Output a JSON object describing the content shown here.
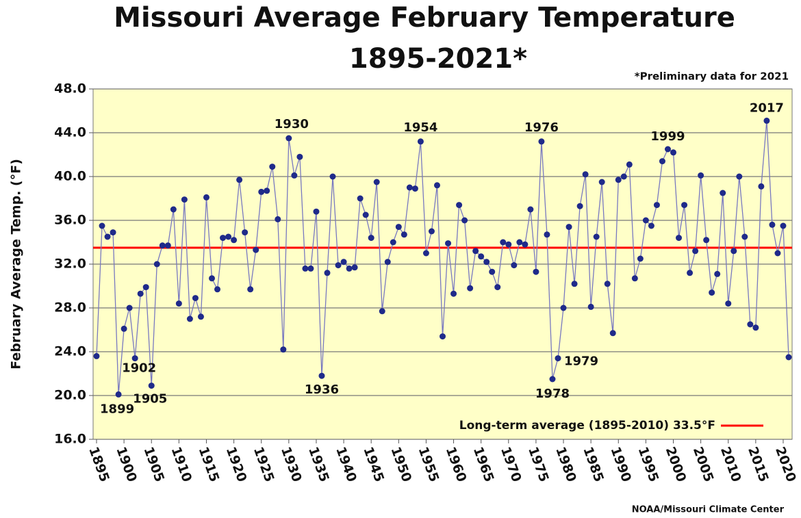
{
  "chart_data": {
    "type": "line",
    "title": [
      "Missouri Average February Temperature",
      "1895-2021*"
    ],
    "note": "*Preliminary data for 2021",
    "source": "NOAA/Missouri Climate Center",
    "y_label": "February Average Temp. (°F)",
    "x": [
      1895,
      1896,
      1897,
      1898,
      1899,
      1900,
      1901,
      1902,
      1903,
      1904,
      1905,
      1906,
      1907,
      1908,
      1909,
      1910,
      1911,
      1912,
      1913,
      1914,
      1915,
      1916,
      1917,
      1918,
      1919,
      1920,
      1921,
      1922,
      1923,
      1924,
      1925,
      1926,
      1927,
      1928,
      1929,
      1930,
      1931,
      1932,
      1933,
      1934,
      1935,
      1936,
      1937,
      1938,
      1939,
      1940,
      1941,
      1942,
      1943,
      1944,
      1945,
      1946,
      1947,
      1948,
      1949,
      1950,
      1951,
      1952,
      1953,
      1954,
      1955,
      1956,
      1957,
      1958,
      1959,
      1960,
      1961,
      1962,
      1963,
      1964,
      1965,
      1966,
      1967,
      1968,
      1969,
      1970,
      1971,
      1972,
      1973,
      1974,
      1975,
      1976,
      1977,
      1978,
      1979,
      1980,
      1981,
      1982,
      1983,
      1984,
      1985,
      1986,
      1987,
      1988,
      1989,
      1990,
      1991,
      1992,
      1993,
      1994,
      1995,
      1996,
      1997,
      1998,
      1999,
      2000,
      2001,
      2002,
      2003,
      2004,
      2005,
      2006,
      2007,
      2008,
      2009,
      2010,
      2011,
      2012,
      2013,
      2014,
      2015,
      2016,
      2017,
      2018,
      2019,
      2020,
      2021
    ],
    "series": [
      {
        "name": "February average temperature",
        "color": "#1f2a8a",
        "line_color": "#7878c0",
        "values": [
          23.6,
          35.5,
          34.5,
          34.9,
          20.1,
          26.1,
          28.0,
          23.4,
          29.3,
          29.9,
          20.9,
          32.0,
          33.7,
          33.7,
          37.0,
          28.4,
          37.9,
          27.0,
          28.9,
          27.2,
          38.1,
          30.7,
          29.7,
          34.4,
          34.5,
          34.2,
          39.7,
          34.9,
          29.7,
          33.3,
          38.6,
          38.7,
          40.9,
          36.1,
          24.2,
          43.5,
          40.1,
          41.8,
          31.6,
          31.6,
          36.8,
          21.8,
          31.2,
          40.0,
          31.9,
          32.2,
          31.6,
          31.7,
          38.0,
          36.5,
          34.4,
          39.5,
          27.7,
          32.2,
          34.0,
          35.4,
          34.7,
          39.0,
          38.9,
          43.2,
          33.0,
          35.0,
          39.2,
          25.4,
          33.9,
          29.3,
          37.4,
          36.0,
          29.8,
          33.2,
          32.7,
          32.2,
          31.3,
          29.9,
          34.0,
          33.8,
          31.9,
          34.0,
          33.8,
          37.0,
          31.3,
          43.2,
          34.7,
          21.5,
          23.4,
          28.0,
          35.4,
          30.2,
          37.3,
          40.2,
          28.1,
          34.5,
          39.5,
          30.2,
          25.7,
          39.7,
          40.0,
          41.1,
          30.7,
          32.5,
          36.0,
          35.5,
          37.4,
          41.4,
          42.5,
          42.2,
          34.4,
          37.4,
          31.2,
          33.2,
          40.1,
          34.2,
          29.4,
          31.1,
          38.5,
          28.4,
          33.2,
          40.0,
          34.5,
          26.5,
          26.2,
          39.1,
          45.1,
          35.6,
          33.0,
          35.5,
          23.5
        ]
      }
    ],
    "average": {
      "label": "Long-term average (1895-2010) 33.5°F",
      "value": 33.5,
      "color": "#ff0000"
    },
    "annotations": [
      {
        "label": "1899",
        "x": 1899
      },
      {
        "label": "1902",
        "x": 1902
      },
      {
        "label": "1905",
        "x": 1905
      },
      {
        "label": "1930",
        "x": 1930
      },
      {
        "label": "1936",
        "x": 1936
      },
      {
        "label": "1954",
        "x": 1954
      },
      {
        "label": "1976",
        "x": 1976
      },
      {
        "label": "1978",
        "x": 1978
      },
      {
        "label": "1979",
        "x": 1979
      },
      {
        "label": "1999",
        "x": 1999
      },
      {
        "label": "2017",
        "x": 2017
      }
    ],
    "xlim": [
      1895,
      2021
    ],
    "xticks": [
      1895,
      1900,
      1905,
      1910,
      1915,
      1920,
      1925,
      1930,
      1935,
      1940,
      1945,
      1950,
      1955,
      1960,
      1965,
      1970,
      1975,
      1980,
      1985,
      1990,
      1995,
      2000,
      2005,
      2010,
      2015,
      2020
    ],
    "ylim": [
      16,
      48
    ],
    "yticks": [
      {
        "value": 16,
        "label": "16.0"
      },
      {
        "value": 20,
        "label": "20.0"
      },
      {
        "value": 24,
        "label": "24.0"
      },
      {
        "value": 28,
        "label": "28.0"
      },
      {
        "value": 32,
        "label": "32.0"
      },
      {
        "value": 36,
        "label": "36.0"
      },
      {
        "value": 40,
        "label": "40.0"
      },
      {
        "value": 44,
        "label": "44.0"
      },
      {
        "value": 48,
        "label": "48.0"
      }
    ],
    "grid": true,
    "background": "#ffffc8"
  }
}
